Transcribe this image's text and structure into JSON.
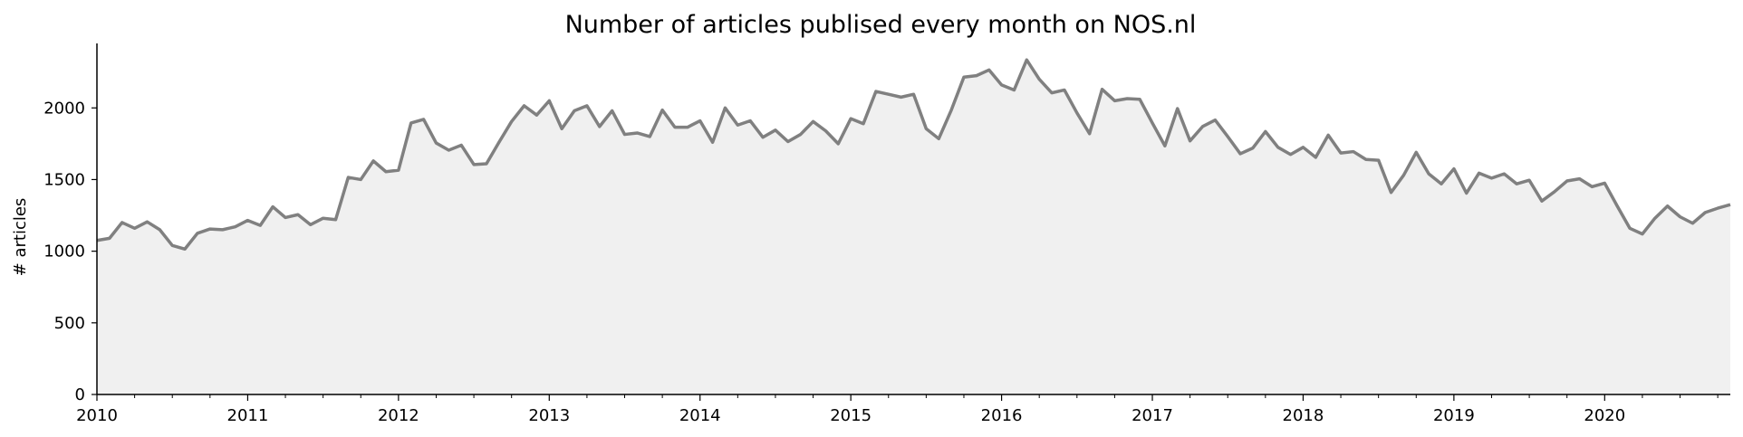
{
  "chart_data": {
    "type": "area",
    "title": "Number of articles publised every month on NOS.nl",
    "xlabel": "",
    "ylabel": "# articles",
    "x_start": "2010-01",
    "x_ticks": [
      "2010",
      "2011",
      "2012",
      "2013",
      "2014",
      "2015",
      "2016",
      "2017",
      "2018",
      "2019",
      "2020"
    ],
    "xlim": [
      "2010-01",
      "2020-11"
    ],
    "ylim": [
      0,
      2450
    ],
    "y_ticks": [
      0,
      500,
      1000,
      1500,
      2000
    ],
    "grid": false,
    "line_color": "#808080",
    "fill_color": "#f0f0f0",
    "values": [
      1075,
      1090,
      1200,
      1160,
      1205,
      1150,
      1040,
      1015,
      1125,
      1155,
      1150,
      1170,
      1215,
      1180,
      1310,
      1235,
      1255,
      1185,
      1230,
      1220,
      1515,
      1500,
      1630,
      1555,
      1565,
      1895,
      1920,
      1755,
      1705,
      1740,
      1605,
      1610,
      1760,
      1905,
      2015,
      1950,
      2050,
      1855,
      1980,
      2015,
      1870,
      1980,
      1815,
      1825,
      1800,
      1985,
      1865,
      1865,
      1910,
      1760,
      2000,
      1880,
      1910,
      1795,
      1845,
      1765,
      1815,
      1905,
      1840,
      1750,
      1925,
      1890,
      2115,
      2095,
      2075,
      2095,
      1855,
      1785,
      1985,
      2215,
      2225,
      2265,
      2160,
      2125,
      2335,
      2200,
      2105,
      2125,
      1965,
      1820,
      2130,
      2050,
      2065,
      2060,
      1895,
      1735,
      1995,
      1770,
      1870,
      1915,
      1800,
      1680,
      1720,
      1835,
      1725,
      1675,
      1725,
      1655,
      1810,
      1685,
      1695,
      1640,
      1635,
      1410,
      1530,
      1690,
      1540,
      1470,
      1575,
      1405,
      1545,
      1510,
      1540,
      1470,
      1495,
      1350,
      1415,
      1490,
      1505,
      1450,
      1475,
      1315,
      1160,
      1120,
      1230,
      1315,
      1240,
      1195,
      1270,
      1300,
      1325
    ]
  }
}
